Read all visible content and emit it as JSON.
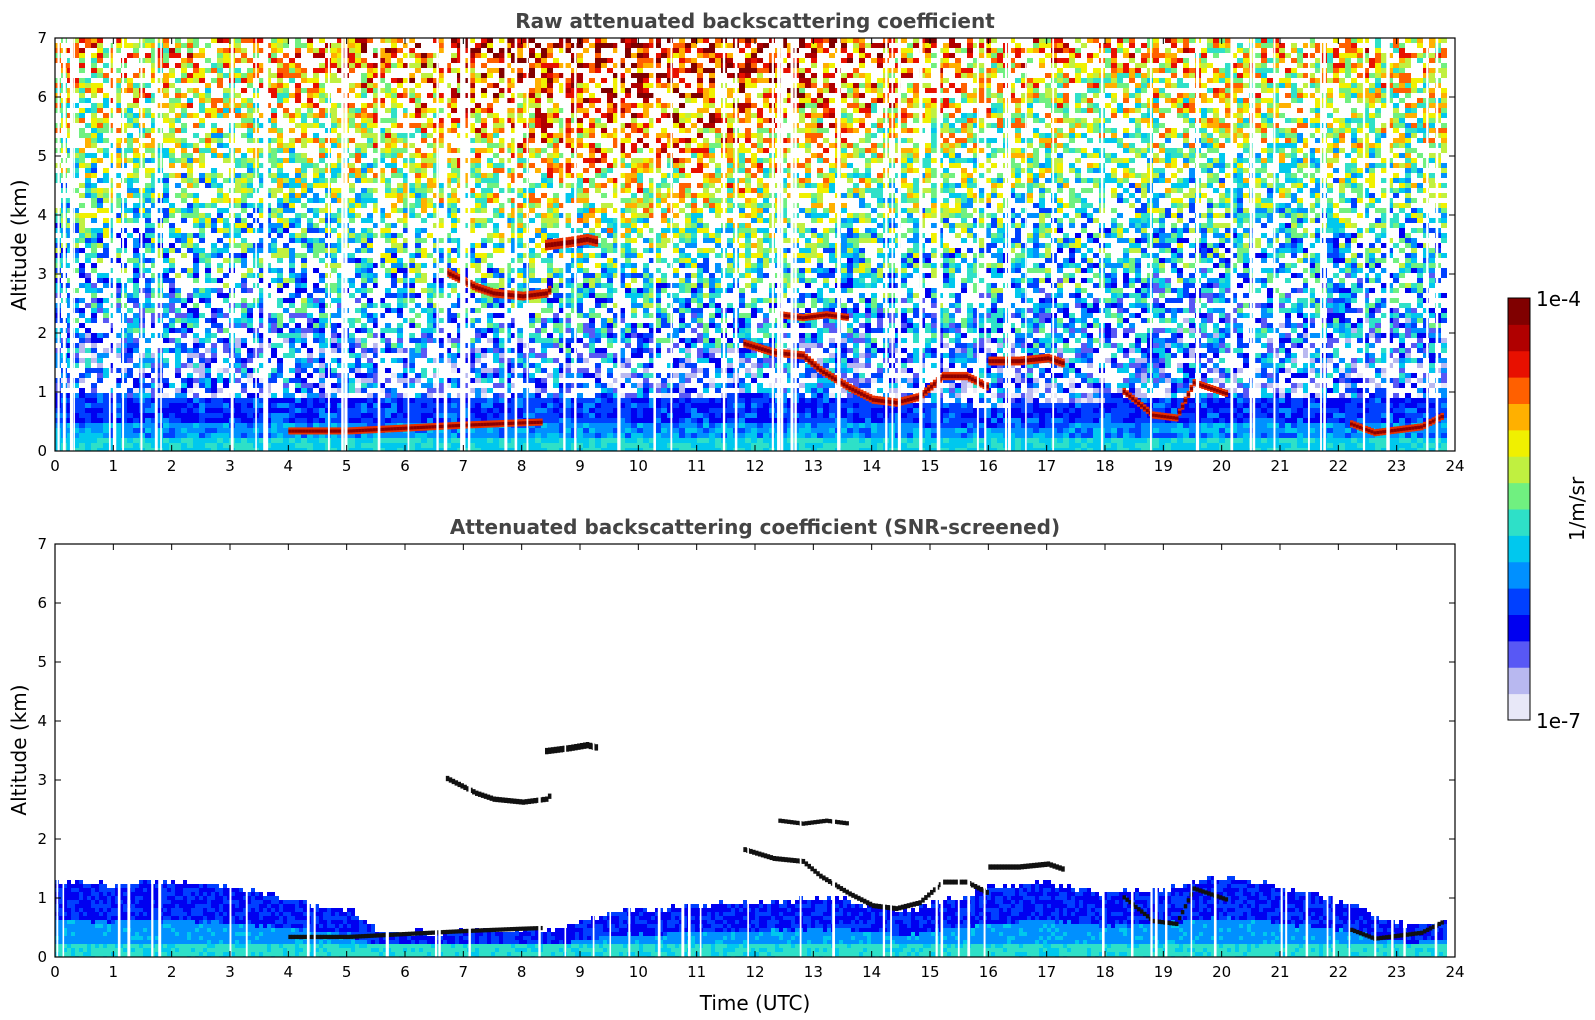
{
  "chart_data": [
    {
      "type": "heatmap",
      "title": "Raw attenuated backscattering coefficient",
      "xlabel": "",
      "ylabel": "Altitude (km)",
      "xlim": [
        0,
        24
      ],
      "ylim": [
        0,
        7
      ],
      "xticks": [
        "0",
        "1",
        "2",
        "3",
        "4",
        "5",
        "6",
        "7",
        "8",
        "9",
        "10",
        "11",
        "12",
        "13",
        "14",
        "15",
        "16",
        "17",
        "18",
        "19",
        "20",
        "21",
        "22",
        "23",
        "24"
      ],
      "yticks": [
        "0",
        "1",
        "2",
        "3",
        "4",
        "5",
        "6",
        "7"
      ],
      "data_end_time": 23.8,
      "boundary_layer_top_km": [
        [
          0,
          1.0
        ],
        [
          5,
          0.9
        ],
        [
          9,
          0.9
        ],
        [
          12,
          1.0
        ],
        [
          14,
          0.9
        ],
        [
          16,
          0.8
        ],
        [
          18,
          0.9
        ],
        [
          21,
          0.9
        ],
        [
          23.8,
          0.9
        ]
      ],
      "aerosol_layers": [
        {
          "points": [
            [
              4.0,
              0.28
            ],
            [
              5.0,
              0.28
            ],
            [
              6.0,
              0.33
            ],
            [
              7.0,
              0.38
            ],
            [
              8.0,
              0.42
            ],
            [
              8.3,
              0.43
            ]
          ],
          "thickness_km": 0.12
        },
        {
          "points": [
            [
              6.7,
              2.95
            ],
            [
              7.2,
              2.7
            ],
            [
              7.5,
              2.6
            ],
            [
              8.0,
              2.55
            ],
            [
              8.4,
              2.6
            ],
            [
              8.5,
              2.7
            ]
          ],
          "thickness_km": 0.15
        },
        {
          "points": [
            [
              8.4,
              3.4
            ],
            [
              8.8,
              3.45
            ],
            [
              9.1,
              3.5
            ],
            [
              9.3,
              3.45
            ]
          ],
          "thickness_km": 0.18
        },
        {
          "points": [
            [
              11.8,
              1.75
            ],
            [
              12.3,
              1.6
            ],
            [
              12.8,
              1.55
            ],
            [
              13.1,
              1.3
            ],
            [
              13.6,
              1.0
            ],
            [
              14.0,
              0.8
            ],
            [
              14.4,
              0.75
            ],
            [
              14.8,
              0.85
            ],
            [
              15.2,
              1.2
            ],
            [
              15.6,
              1.2
            ],
            [
              16.0,
              1.0
            ]
          ],
          "thickness_km": 0.14
        },
        {
          "points": [
            [
              12.4,
              2.25
            ],
            [
              12.8,
              2.2
            ],
            [
              13.2,
              2.25
            ],
            [
              13.6,
              2.2
            ]
          ],
          "thickness_km": 0.12
        },
        {
          "points": [
            [
              16.0,
              1.45
            ],
            [
              16.5,
              1.45
            ],
            [
              17.0,
              1.5
            ],
            [
              17.3,
              1.4
            ]
          ],
          "thickness_km": 0.15
        },
        {
          "points": [
            [
              18.3,
              0.95
            ],
            [
              18.8,
              0.55
            ],
            [
              19.2,
              0.5
            ],
            [
              19.5,
              1.1
            ],
            [
              19.8,
              1.0
            ],
            [
              20.1,
              0.9
            ]
          ],
          "thickness_km": 0.12
        },
        {
          "points": [
            [
              22.2,
              0.4
            ],
            [
              22.6,
              0.25
            ],
            [
              23.0,
              0.3
            ],
            [
              23.4,
              0.35
            ],
            [
              23.8,
              0.55
            ]
          ],
          "thickness_km": 0.12
        }
      ],
      "colorbar": {
        "min_label": "1e-7",
        "max_label": "1e-4",
        "label": "1/m/sr",
        "scale": "log"
      }
    },
    {
      "type": "heatmap",
      "title": "Attenuated backscattering coefficient (SNR-screened)",
      "xlabel": "Time (UTC)",
      "ylabel": "Altitude (km)",
      "xlim": [
        0,
        24
      ],
      "ylim": [
        0,
        7
      ],
      "xticks": [
        "0",
        "1",
        "2",
        "3",
        "4",
        "5",
        "6",
        "7",
        "8",
        "9",
        "10",
        "11",
        "12",
        "13",
        "14",
        "15",
        "16",
        "17",
        "18",
        "19",
        "20",
        "21",
        "22",
        "23",
        "24"
      ],
      "yticks": [
        "0",
        "1",
        "2",
        "3",
        "4",
        "5",
        "6",
        "7"
      ],
      "screened_top_km": [
        [
          0,
          1.3
        ],
        [
          1,
          1.25
        ],
        [
          2,
          1.3
        ],
        [
          3,
          1.25
        ],
        [
          4,
          1.0
        ],
        [
          5,
          0.85
        ],
        [
          5.5,
          0.45
        ],
        [
          7,
          0.45
        ],
        [
          8.5,
          0.5
        ],
        [
          9.5,
          0.8
        ],
        [
          11,
          0.9
        ],
        [
          12.5,
          1.0
        ],
        [
          13.5,
          1.0
        ],
        [
          14.5,
          0.8
        ],
        [
          16,
          1.2
        ],
        [
          17,
          1.3
        ],
        [
          18,
          1.1
        ],
        [
          19,
          1.2
        ],
        [
          20,
          1.4
        ],
        [
          21,
          1.2
        ],
        [
          22,
          1.0
        ],
        [
          23,
          0.6
        ],
        [
          23.8,
          0.6
        ]
      ]
    }
  ],
  "colors": {
    "colormap": [
      "#e8e8f8",
      "#b8b8f0",
      "#5858f5",
      "#0000f0",
      "#0040ff",
      "#0090ff",
      "#00c8ee",
      "#2ee0c8",
      "#70f080",
      "#c0f040",
      "#f0f000",
      "#ffb000",
      "#ff6000",
      "#e81000",
      "#b00000",
      "#800000"
    ],
    "layer_core": "#8b0000",
    "layer_edge": "#e83000",
    "screened_layer": "#111111"
  }
}
